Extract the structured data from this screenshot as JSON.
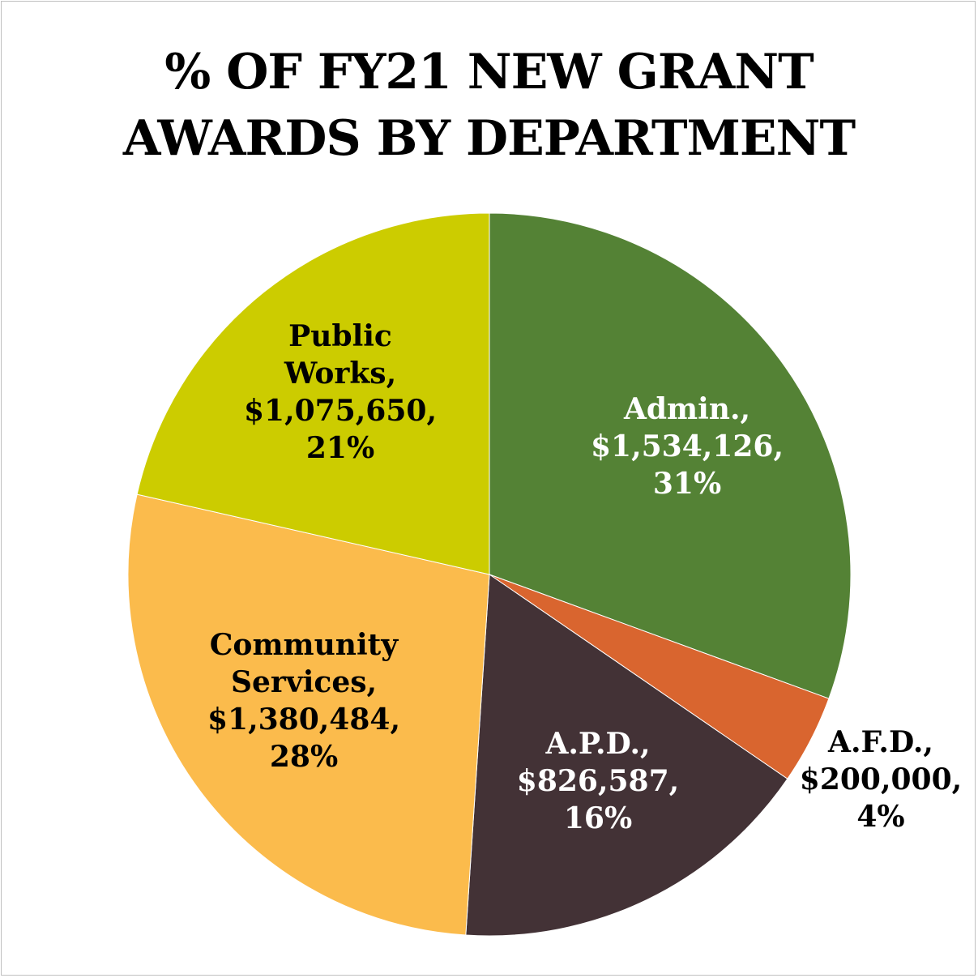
{
  "chart_data": {
    "type": "pie",
    "title_lines": [
      "% OF FY21 NEW GRANT",
      "AWARDS BY DEPARTMENT"
    ],
    "start_angle_deg": 0,
    "direction": "clockwise",
    "slices": [
      {
        "name": "Admin.",
        "value": 1534126,
        "value_label": "$1,534,126",
        "percent": "31%",
        "color": "#548235",
        "label_color": "#ffffff",
        "label_lines": [
          "Admin.,",
          "$1,534,126,",
          "31%"
        ]
      },
      {
        "name": "A.F.D.",
        "value": 200000,
        "value_label": "$200,000",
        "percent": "4%",
        "color": "#d9652f",
        "label_color": "#000000",
        "label_lines": [
          "A.F.D.,",
          "$200,000,",
          "4%"
        ]
      },
      {
        "name": "A.P.D.",
        "value": 826587,
        "value_label": "$826,587",
        "percent": "16%",
        "color": "#433236",
        "label_color": "#ffffff",
        "label_lines": [
          "A.P.D.,",
          "$826,587,",
          "16%"
        ]
      },
      {
        "name": "Community Services",
        "value": 1380484,
        "value_label": "$1,380,484",
        "percent": "28%",
        "color": "#fbbb4c",
        "label_color": "#000000",
        "label_lines": [
          "Community",
          "Services,",
          "$1,380,484,",
          "28%"
        ]
      },
      {
        "name": "Public Works",
        "value": 1075650,
        "value_label": "$1,075,650",
        "percent": "21%",
        "color": "#cccc00",
        "label_color": "#000000",
        "label_lines": [
          "Public",
          "Works,",
          "$1,075,650,",
          "21%"
        ]
      }
    ]
  }
}
